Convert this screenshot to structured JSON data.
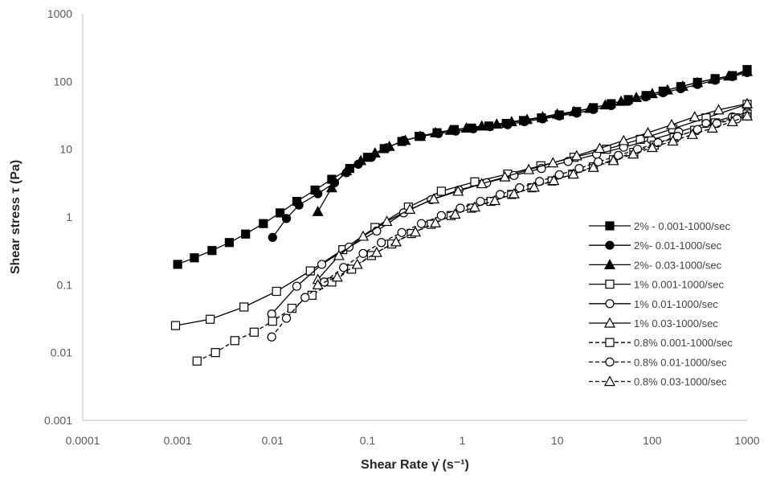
{
  "chart_data": {
    "type": "scatter",
    "x_scale": "log",
    "y_scale": "log",
    "xlim": [
      0.0001,
      1000
    ],
    "ylim": [
      0.001,
      1000
    ],
    "xlabel": "Shear Rate γ̇ (s⁻¹)",
    "ylabel": "Shear stress τ (Pa)",
    "x_ticks": [
      "0.0001",
      "0.001",
      "0.01",
      "0.1",
      "1",
      "10",
      "100",
      "1000"
    ],
    "y_ticks": [
      "0.001",
      "0.01",
      "0.1",
      "1",
      "10",
      "100",
      "1000"
    ],
    "grid": false,
    "legend_position": "right",
    "series": [
      {
        "name": "2% - 0.001-1000/sec",
        "marker": "square",
        "fill": "solid",
        "line": "solid",
        "x": [
          0.001,
          0.0015,
          0.0023,
          0.0035,
          0.0052,
          0.008,
          0.012,
          0.018,
          0.028,
          0.042,
          0.065,
          0.1,
          0.15,
          0.23,
          0.35,
          0.54,
          0.82,
          1.25,
          1.9,
          2.9,
          4.4,
          6.8,
          10.5,
          16,
          24,
          37,
          56,
          86,
          130,
          200,
          300,
          460,
          700,
          1000
        ],
        "y": [
          0.2,
          0.25,
          0.32,
          0.42,
          0.56,
          0.8,
          1.15,
          1.7,
          2.5,
          3.6,
          5.2,
          7.6,
          10.2,
          13,
          15.5,
          17.5,
          19.5,
          20.5,
          22,
          24,
          26.5,
          29,
          32,
          36,
          41,
          47,
          54,
          62,
          72,
          84,
          97,
          110,
          122,
          150
        ]
      },
      {
        "name": "2%- 0.01-1000/sec",
        "marker": "circle",
        "fill": "solid",
        "line": "solid",
        "x": [
          0.01,
          0.014,
          0.019,
          0.03,
          0.045,
          0.06,
          0.08,
          0.11,
          0.16,
          0.24,
          0.37,
          0.56,
          0.85,
          1.3,
          1.95,
          3,
          4.5,
          7,
          10.5,
          16,
          24,
          37,
          56,
          85,
          130,
          200,
          300,
          460,
          700,
          1000
        ],
        "y": [
          0.5,
          0.95,
          1.5,
          2.2,
          3.2,
          4.5,
          6,
          7.6,
          10.5,
          13.5,
          15.5,
          17,
          18.5,
          20,
          21.5,
          23,
          25.5,
          28,
          31,
          34,
          38.5,
          44,
          51,
          59,
          68,
          78,
          90,
          104,
          118,
          135
        ]
      },
      {
        "name": "2%- 0.03-1000/sec",
        "marker": "triangle",
        "fill": "solid",
        "line": "solid",
        "x": [
          0.03,
          0.042,
          0.06,
          0.085,
          0.12,
          0.17,
          0.25,
          0.36,
          0.52,
          0.75,
          1.1,
          1.6,
          2.3,
          3.3,
          4.8,
          7,
          10,
          15,
          22,
          32,
          47,
          68,
          100,
          145,
          210,
          300,
          440,
          640,
          1000
        ],
        "y": [
          1.2,
          2.7,
          4.8,
          6.8,
          8.8,
          11,
          13.5,
          15.5,
          17.5,
          19,
          20.5,
          22,
          23.5,
          25.5,
          27.5,
          30,
          33,
          36,
          40,
          45,
          51,
          58,
          66,
          75,
          85,
          96,
          108,
          120,
          140
        ]
      },
      {
        "name": "1% 0.001-1000/sec",
        "marker": "square",
        "fill": "open",
        "line": "solid",
        "x": [
          0.00095,
          0.0022,
          0.005,
          0.011,
          0.025,
          0.055,
          0.12,
          0.27,
          0.6,
          1.35,
          3,
          6.7,
          15,
          33,
          75,
          165,
          370,
          1000
        ],
        "y": [
          0.025,
          0.031,
          0.047,
          0.08,
          0.16,
          0.33,
          0.7,
          1.4,
          2.4,
          3.3,
          4.3,
          5.7,
          7.6,
          10,
          14,
          20,
          29,
          46
        ]
      },
      {
        "name": "1% 0.01-1000/sec",
        "marker": "circle",
        "fill": "open",
        "line": "solid",
        "x": [
          0.0098,
          0.018,
          0.033,
          0.064,
          0.125,
          0.24,
          0.47,
          0.92,
          1.8,
          3.5,
          6.8,
          13,
          26,
          50,
          98,
          190,
          370,
          700,
          1000
        ],
        "y": [
          0.037,
          0.095,
          0.2,
          0.36,
          0.62,
          1.15,
          1.8,
          2.5,
          3.2,
          4.1,
          5.2,
          6.6,
          8.4,
          10.7,
          13.8,
          18,
          24,
          30,
          35
        ]
      },
      {
        "name": "1% 0.03-1000/sec",
        "marker": "triangle",
        "fill": "open",
        "line": "solid",
        "x": [
          0.03,
          0.05,
          0.09,
          0.16,
          0.28,
          0.5,
          0.9,
          1.6,
          2.8,
          5,
          9,
          16,
          28,
          50,
          90,
          160,
          280,
          500,
          1000
        ],
        "y": [
          0.12,
          0.27,
          0.52,
          0.86,
          1.3,
          1.85,
          2.4,
          3.1,
          3.9,
          5,
          6.3,
          8,
          10.3,
          13.4,
          17.5,
          23,
          30,
          38,
          47
        ]
      },
      {
        "name": "0.8% 0.001-1000/sec",
        "marker": "square",
        "fill": "open",
        "line": "dashed",
        "x": [
          0.0016,
          0.0025,
          0.004,
          0.0064,
          0.01,
          0.016,
          0.026,
          0.042,
          0.068,
          0.11,
          0.18,
          0.29,
          0.47,
          0.76,
          1.25,
          2,
          3.3,
          5.4,
          8.8,
          14.5,
          24,
          39,
          64,
          105,
          170,
          280,
          460,
          750,
          1000
        ],
        "y": [
          0.0075,
          0.01,
          0.015,
          0.02,
          0.029,
          0.045,
          0.07,
          0.11,
          0.17,
          0.27,
          0.4,
          0.57,
          0.78,
          1.05,
          1.35,
          1.7,
          2.15,
          2.7,
          3.4,
          4.3,
          5.5,
          7,
          9,
          11.5,
          14.8,
          19,
          24.5,
          29,
          33
        ]
      },
      {
        "name": "0.8% 0.01-1000/sec",
        "marker": "circle",
        "fill": "open",
        "line": "dashed",
        "x": [
          0.0098,
          0.014,
          0.022,
          0.035,
          0.056,
          0.09,
          0.14,
          0.23,
          0.37,
          0.6,
          0.95,
          1.55,
          2.5,
          4,
          6.5,
          10.5,
          17,
          27,
          44,
          70,
          115,
          185,
          300,
          480,
          780,
          1000
        ],
        "y": [
          0.017,
          0.032,
          0.065,
          0.11,
          0.18,
          0.29,
          0.42,
          0.59,
          0.8,
          1.05,
          1.35,
          1.7,
          2.15,
          2.7,
          3.35,
          4.2,
          5.2,
          6.5,
          8.1,
          10,
          12.5,
          15.5,
          19.5,
          24,
          28,
          31
        ]
      },
      {
        "name": "0.8% 0.03-1000/sec",
        "marker": "triangle",
        "fill": "open",
        "line": "dashed",
        "x": [
          0.03,
          0.048,
          0.078,
          0.125,
          0.2,
          0.32,
          0.52,
          0.84,
          1.35,
          2.2,
          3.5,
          5.7,
          9.2,
          14.8,
          24,
          39,
          63,
          100,
          165,
          265,
          430,
          700,
          1000
        ],
        "y": [
          0.1,
          0.13,
          0.2,
          0.3,
          0.43,
          0.6,
          0.82,
          1.1,
          1.4,
          1.75,
          2.2,
          2.75,
          3.45,
          4.3,
          5.4,
          6.8,
          8.5,
          10.6,
          13.2,
          16.5,
          20.5,
          25.5,
          31
        ]
      }
    ]
  }
}
